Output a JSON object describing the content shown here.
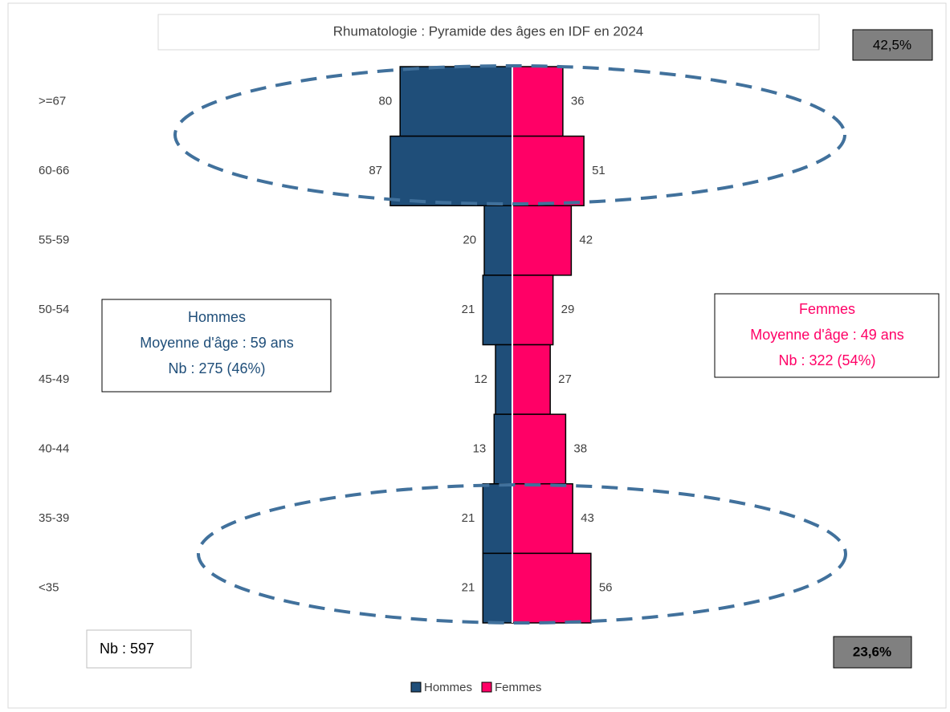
{
  "chart_data": {
    "type": "pyramid",
    "title": "Rhumatologie : Pyramide des âges en IDF en 2024",
    "categories": [
      ">=67",
      "60-66",
      "55-59",
      "50-54",
      "45-49",
      "40-44",
      "35-39",
      "<35"
    ],
    "series": [
      {
        "name": "Hommes",
        "color": "#1f4e79",
        "values": [
          80,
          87,
          20,
          21,
          12,
          13,
          21,
          21
        ]
      },
      {
        "name": "Femmes",
        "color": "#ff0066",
        "values": [
          36,
          51,
          42,
          29,
          27,
          38,
          43,
          56
        ]
      }
    ],
    "annotations": {
      "hommes": [
        "Hommes",
        "Moyenne d'âge : 59 ans",
        "Nb : 275 (46%)"
      ],
      "femmes": [
        "Femmes",
        "Moyenne d'âge : 49 ans",
        "Nb : 322 (54%)"
      ],
      "top_share": "42,5%",
      "bottom_share": "23,6%",
      "total": "Nb : 597"
    },
    "legend": "bottom"
  }
}
